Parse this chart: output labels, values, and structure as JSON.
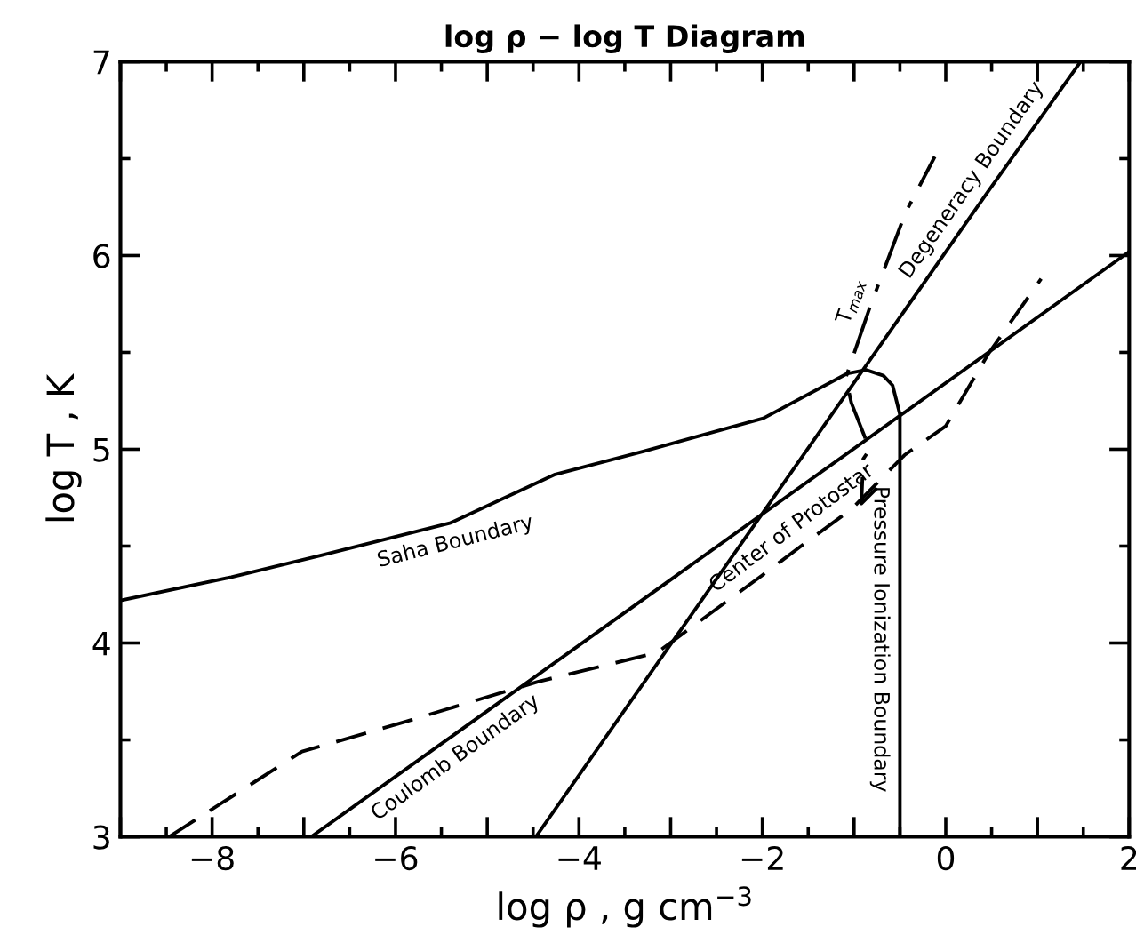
{
  "chart_data": {
    "type": "line",
    "title": "log ρ − log T Diagram",
    "xlabel": "log ρ , g cm$^{−3}$",
    "ylabel": "log T , K",
    "xlim": [
      -9,
      2
    ],
    "ylim": [
      3,
      7
    ],
    "xticks": [
      {
        "value": -9,
        "label": null
      },
      -8,
      {
        "value": -7,
        "label": null
      },
      -6,
      {
        "value": -5,
        "label": null
      },
      -4,
      {
        "value": -3,
        "label": null
      },
      -2,
      {
        "value": -1,
        "label": null
      },
      0,
      {
        "value": 1,
        "label": null
      },
      2
    ],
    "yticks": [
      3,
      4,
      5,
      6,
      7
    ],
    "grid": false,
    "marker": "none",
    "series": [
      {
        "color": "#000000",
        "line_style": "solid",
        "x": [
          -9,
          -7.79,
          -6.83,
          -5.4,
          -4.26,
          -3.29,
          -1.99,
          -1.08,
          -0.87,
          -0.68,
          -0.58,
          -0.5,
          -0.5,
          -0.5
        ],
        "values": [
          4.22,
          4.34,
          4.45,
          4.62,
          4.87,
          4.99,
          5.16,
          5.39,
          5.41,
          5.38,
          5.33,
          5.18,
          4.02,
          3
        ]
      },
      {
        "color": "#000000",
        "line_style": "solid",
        "x": [
          -4.47,
          0.46,
          1.47
        ],
        "values": [
          3,
          6.33,
          7
        ]
      },
      {
        "color": "#000000",
        "line_style": "solid",
        "x": [
          -6.92,
          -5.47,
          2
        ],
        "values": [
          3,
          3.49,
          6.02
        ]
      },
      {
        "color": "#000000",
        "line_style": "dashed",
        "x": [
          -8.47,
          -7.02,
          -5.92,
          -4.45,
          -3.15,
          -2.0,
          -1.55,
          -1.03,
          -0.45,
          0,
          0.46,
          1.04
        ],
        "values": [
          3,
          3.44,
          3.59,
          3.8,
          3.95,
          4.35,
          4.51,
          4.69,
          4.97,
          5.12,
          5.49,
          5.88
        ]
      },
      {
        "color": "#000000",
        "line_style": "dashdot",
        "x": [
          -0.75,
          -0.92,
          -0.9,
          -0.83,
          -1.03,
          -1.09,
          -0.83,
          -0.44,
          -0.12
        ],
        "values": [
          4.8,
          4.72,
          4.95,
          5.0,
          5.24,
          5.37,
          5.73,
          6.22,
          6.51
        ]
      }
    ],
    "annotations": [
      {
        "text": "Saha Boundary",
        "x": -5.4,
        "y": 4.62
      },
      {
        "text": "Coulomb Boundary",
        "x": -5.47,
        "y": 3.49
      },
      {
        "text": "Center of Protostar",
        "x": -1.55,
        "y": 4.51
      },
      {
        "text": "Degeneracy Boundary",
        "x": 0.46,
        "y": 6.33
      },
      {
        "text": "Pressure Ionization Boundary",
        "x": -0.5,
        "y": 4.02
      },
      {
        "text": "T$_{max}$",
        "x": -0.83,
        "y": 5.73
      }
    ]
  }
}
